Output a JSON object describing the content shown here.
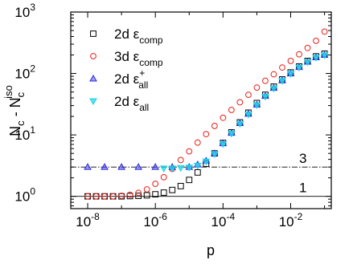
{
  "chart_data": {
    "type": "scatter",
    "title": "",
    "xlabel": "p",
    "ylabel": "N_c - N_c^iso",
    "xscale": "log",
    "yscale": "log",
    "xlim_exp": [
      -8.5,
      -0.8
    ],
    "ylim_exp": [
      -0.2,
      3.0
    ],
    "x_tick_labels": [
      {
        "base": "10",
        "exp": "-8",
        "value": 1e-08
      },
      {
        "base": "10",
        "exp": "-6",
        "value": 1e-06
      },
      {
        "base": "10",
        "exp": "-4",
        "value": 0.0001
      },
      {
        "base": "10",
        "exp": "-2",
        "value": 0.01
      }
    ],
    "y_tick_labels": [
      {
        "base": "10",
        "exp": "0",
        "value": 1
      },
      {
        "base": "10",
        "exp": "1",
        "value": 10
      },
      {
        "base": "10",
        "exp": "2",
        "value": 100
      },
      {
        "base": "10",
        "exp": "3",
        "value": 1000
      }
    ],
    "grid": false,
    "legend_position": "top-left",
    "reference_lines": [
      {
        "label": "3",
        "y": 3,
        "style": "dash-dot",
        "color": "#000000"
      },
      {
        "label": "1",
        "y": 1,
        "style": "solid",
        "color": "#000000"
      }
    ],
    "series": [
      {
        "name": "2d ε",
        "name_sub": "comp",
        "name_sup": "",
        "marker": "square",
        "color": "#000000",
        "x_exp": [
          -8,
          -7.75,
          -7.5,
          -7.25,
          -7,
          -6.75,
          -6.5,
          -6.25,
          -6,
          -5.75,
          -5.5,
          -5.25,
          -5,
          -4.75,
          -4.5,
          -4.25,
          -4,
          -3.75,
          -3.5,
          -3.25,
          -3,
          -2.75,
          -2.5,
          -2.25,
          -2,
          -1.75,
          -1.5,
          -1.25,
          -1
        ],
        "y": [
          1.0,
          1.0,
          1.0,
          1.0,
          1.0,
          1.01,
          1.02,
          1.04,
          1.08,
          1.15,
          1.27,
          1.47,
          1.85,
          2.45,
          3.4,
          5.0,
          7.4,
          11.0,
          16.0,
          23.0,
          33.0,
          45.0,
          61.0,
          80.0,
          104.0,
          130.0,
          160.0,
          190.0,
          210.0
        ]
      },
      {
        "name": "3d ε",
        "name_sub": "comp",
        "name_sup": "",
        "marker": "circle",
        "color": "#e8201a",
        "x_exp": [
          -8,
          -7.75,
          -7.5,
          -7.25,
          -7,
          -6.75,
          -6.5,
          -6.25,
          -6,
          -5.75,
          -5.5,
          -5.25,
          -5,
          -4.75,
          -4.5,
          -4.25,
          -4,
          -3.75,
          -3.5,
          -3.25,
          -3,
          -2.75,
          -2.5,
          -2.25,
          -2,
          -1.75,
          -1.5,
          -1.25,
          -1
        ],
        "y": [
          1.0,
          1.0,
          1.0,
          1.0,
          1.02,
          1.06,
          1.14,
          1.3,
          1.6,
          2.05,
          2.8,
          3.9,
          5.4,
          7.5,
          10.3,
          14.0,
          19.0,
          25.5,
          34.0,
          45.0,
          59.0,
          76.0,
          97.0,
          125.0,
          160.0,
          205.0,
          260.0,
          340.0,
          480.0
        ]
      },
      {
        "name": "2d ε",
        "name_sub": "all",
        "name_sup": "+",
        "marker": "triangle-up",
        "color": "#2a2ae0",
        "x_exp": [
          -8,
          -7.5,
          -7,
          -6.5,
          -6,
          -5.5,
          -5,
          -4.75,
          -4.5,
          -4.25,
          -4,
          -3.75,
          -3.5,
          -3.25,
          -3,
          -2.75,
          -2.5,
          -2.25,
          -2,
          -1.75,
          -1.5,
          -1.25,
          -1
        ],
        "y": [
          3.0,
          3.0,
          3.0,
          3.0,
          3.0,
          3.0,
          3.0,
          3.3,
          3.8,
          5.0,
          7.3,
          10.8,
          15.5,
          22.0,
          31.0,
          43.0,
          58.0,
          77.0,
          100.0,
          127.0,
          155.0,
          183.0,
          200.0
        ]
      },
      {
        "name": "2d ε",
        "name_sub": "all",
        "name_sup": "",
        "marker": "triangle-down",
        "color": "#19d3e6",
        "x_exp": [
          -5.75,
          -5.5,
          -5.25,
          -5,
          -4.75,
          -4.5,
          -4.25,
          -4,
          -3.75,
          -3.5,
          -3.25,
          -3,
          -2.75,
          -2.5,
          -2.25,
          -2,
          -1.75,
          -1.5,
          -1.25,
          -1
        ],
        "y": [
          2.85,
          2.85,
          2.9,
          2.95,
          3.15,
          3.7,
          4.9,
          7.1,
          10.5,
          15.2,
          21.5,
          30.5,
          42.0,
          57.0,
          76.0,
          99.0,
          125.0,
          153.0,
          181.0,
          198.0
        ]
      }
    ]
  }
}
